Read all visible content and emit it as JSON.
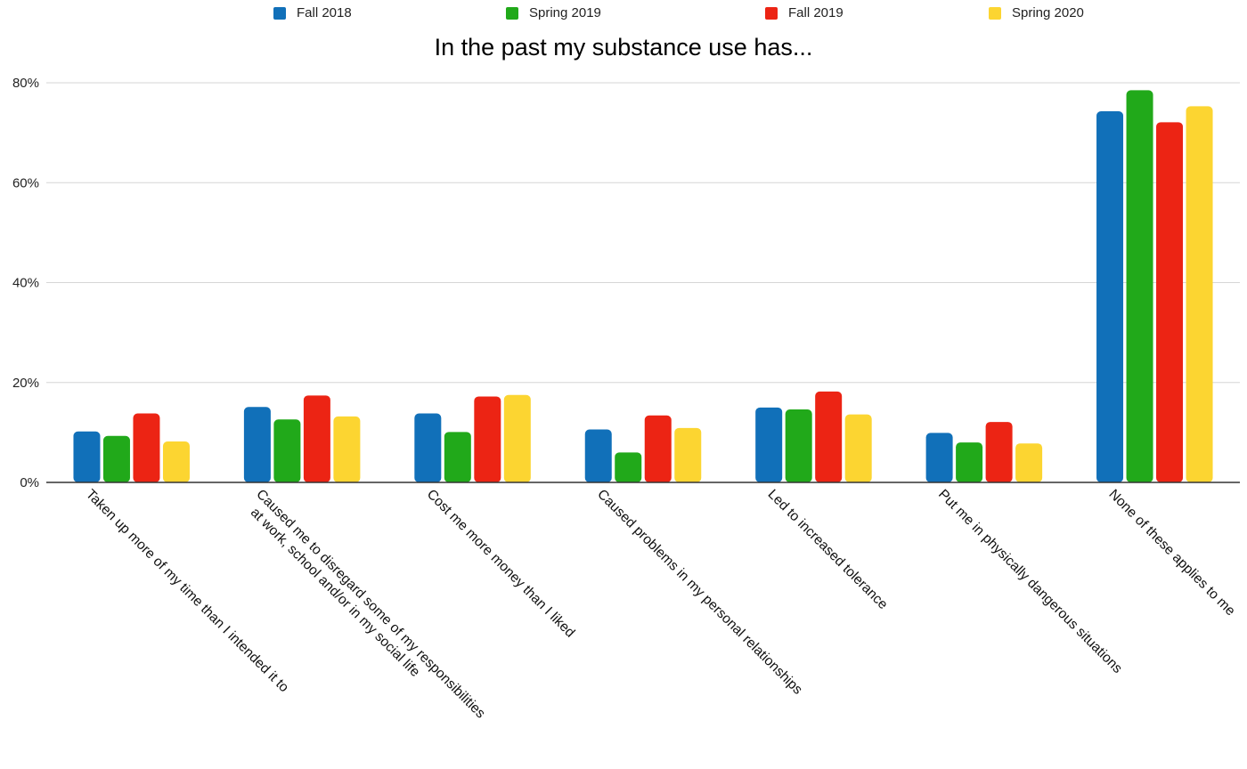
{
  "chart_data": {
    "type": "bar",
    "title": "In the past my substance use has...",
    "xlabel": "",
    "ylabel": "",
    "ylim": [
      0,
      80
    ],
    "yticks": [
      "0%",
      "20%",
      "40%",
      "60%",
      "80%"
    ],
    "yticks_values": [
      0,
      20,
      40,
      60,
      80
    ],
    "grid": true,
    "legend_position": "top",
    "categories": [
      [
        "Taken up more of my time than I intended it to"
      ],
      [
        "Caused me to disregard some of my responsibilities",
        "at work, school and/or in my social life"
      ],
      [
        "Cost me more money than I liked"
      ],
      [
        "Caused problems in my personal relationships"
      ],
      [
        "Led to increased tolerance"
      ],
      [
        "Put me in physically dangerous situations"
      ],
      [
        "None of these applies to me"
      ]
    ],
    "series": [
      {
        "name": "Fall 2018",
        "color": "#1170b9",
        "values": [
          10.2,
          15.1,
          13.8,
          10.6,
          15.0,
          9.9,
          74.3
        ]
      },
      {
        "name": "Spring 2019",
        "color": "#21a91a",
        "values": [
          9.3,
          12.6,
          10.1,
          6.0,
          14.6,
          8.0,
          78.5
        ]
      },
      {
        "name": "Fall 2019",
        "color": "#ec2414",
        "values": [
          13.8,
          17.4,
          17.2,
          13.4,
          18.2,
          12.1,
          72.1
        ]
      },
      {
        "name": "Spring 2020",
        "color": "#fcd531",
        "values": [
          8.2,
          13.2,
          17.5,
          10.9,
          13.6,
          7.8,
          75.3
        ]
      }
    ]
  }
}
